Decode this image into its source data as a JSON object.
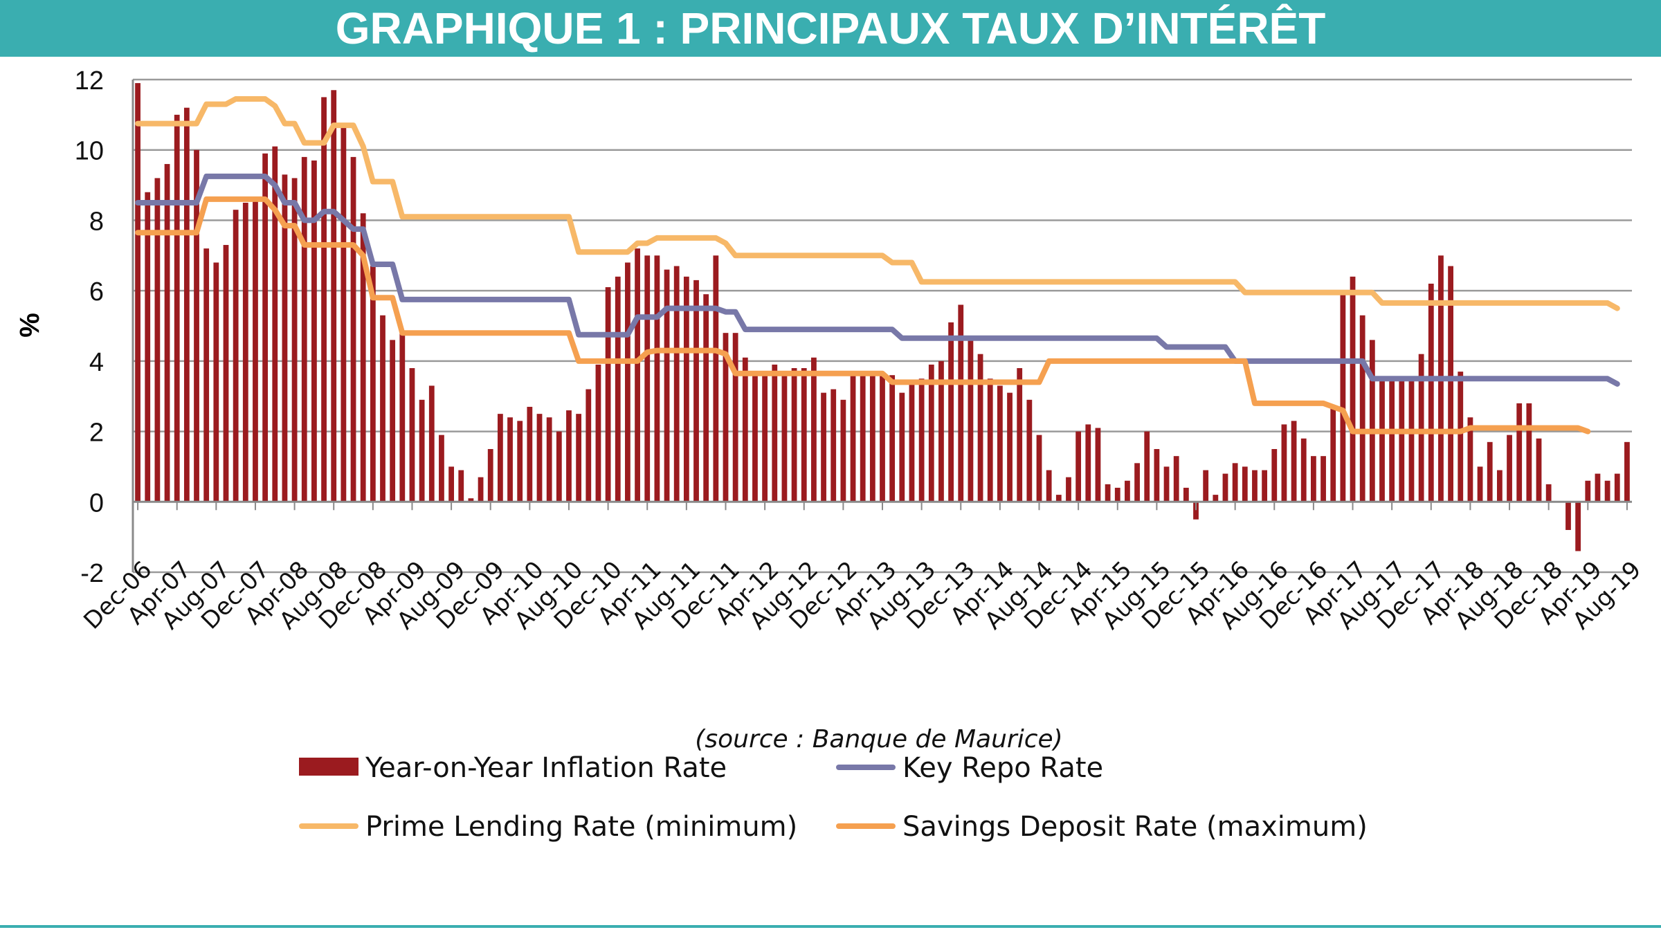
{
  "banner": {
    "title": "GRAPHIQUE 1 : PRINCIPAUX TAUX D’INTÉRÊT"
  },
  "chart_data": {
    "type": "bar",
    "title": "",
    "ylabel": "%",
    "xlabel": "",
    "ylim": [
      -2,
      12
    ],
    "yticks": [
      -2,
      0,
      2,
      4,
      6,
      8,
      10,
      12
    ],
    "grid": true,
    "legend_position": "bottom",
    "source": "(source : Banque de Maurice)",
    "x_tick_labels": [
      "Dec-06",
      "Apr-07",
      "Aug-07",
      "Dec-07",
      "Apr-08",
      "Aug-08",
      "Dec-08",
      "Apr-09",
      "Aug-09",
      "Dec-09",
      "Apr-10",
      "Aug-10",
      "Dec-10",
      "Apr-11",
      "Aug-11",
      "Dec-11",
      "Apr-12",
      "Aug-12",
      "Dec-12",
      "Apr-13",
      "Aug-13",
      "Dec-13",
      "Apr-14",
      "Aug-14",
      "Dec-14",
      "Apr-15",
      "Aug-15",
      "Dec-15",
      "Apr-16",
      "Aug-16",
      "Dec-16",
      "Apr-17",
      "Aug-17",
      "Dec-17",
      "Apr-18",
      "Aug-18",
      "Dec-18",
      "Apr-19",
      "Aug-19"
    ],
    "series": [
      {
        "name": "Year-on-Year Inflation Rate",
        "kind": "bar",
        "color": "#9b1b1f",
        "values": [
          11.9,
          8.8,
          9.2,
          9.6,
          11.0,
          11.2,
          10.0,
          7.2,
          6.8,
          7.3,
          8.3,
          8.5,
          8.6,
          9.9,
          10.1,
          9.3,
          9.2,
          9.8,
          9.7,
          11.5,
          11.7,
          10.7,
          9.8,
          8.2,
          6.7,
          5.3,
          4.6,
          4.8,
          3.8,
          2.9,
          3.3,
          1.9,
          1.0,
          0.9,
          0.1,
          0.7,
          1.5,
          2.5,
          2.4,
          2.3,
          2.7,
          2.5,
          2.4,
          2.0,
          2.6,
          2.5,
          3.2,
          3.9,
          6.1,
          6.4,
          6.8,
          7.2,
          7.0,
          7.0,
          6.6,
          6.7,
          6.4,
          6.3,
          5.9,
          7.0,
          4.8,
          4.8,
          4.1,
          3.7,
          3.7,
          3.9,
          3.7,
          3.8,
          3.8,
          4.1,
          3.1,
          3.2,
          2.9,
          3.7,
          3.6,
          3.7,
          3.6,
          3.6,
          3.1,
          3.4,
          3.5,
          3.9,
          4.0,
          5.1,
          5.6,
          4.6,
          4.2,
          3.5,
          3.3,
          3.1,
          3.8,
          2.9,
          1.9,
          0.9,
          0.2,
          0.7,
          2.0,
          2.2,
          2.1,
          0.5,
          0.4,
          0.6,
          1.1,
          2.0,
          1.5,
          1.0,
          1.3,
          0.4,
          -0.5,
          0.9,
          0.2,
          0.8,
          1.1,
          1.0,
          0.9,
          0.9,
          1.5,
          2.2,
          2.3,
          1.8,
          1.3,
          1.3,
          2.7,
          5.9,
          6.4,
          5.3,
          4.6,
          3.5,
          3.5,
          3.5,
          3.5,
          4.2,
          6.2,
          7.0,
          6.7,
          3.7,
          2.4,
          1.0,
          1.7,
          0.9,
          1.9,
          2.8,
          2.8,
          1.8,
          0.5,
          0.0,
          -0.8,
          -1.4,
          0.6,
          0.8,
          0.6,
          0.8,
          1.7
        ]
      },
      {
        "name": "Key Repo Rate",
        "kind": "line",
        "color": "#7878a8",
        "values": [
          8.5,
          8.5,
          8.5,
          8.5,
          8.5,
          8.5,
          8.5,
          9.25,
          9.25,
          9.25,
          9.25,
          9.25,
          9.25,
          9.25,
          9.0,
          8.5,
          8.5,
          8.0,
          8.0,
          8.25,
          8.25,
          8.0,
          7.75,
          7.75,
          6.75,
          6.75,
          6.75,
          5.75,
          5.75,
          5.75,
          5.75,
          5.75,
          5.75,
          5.75,
          5.75,
          5.75,
          5.75,
          5.75,
          5.75,
          5.75,
          5.75,
          5.75,
          5.75,
          5.75,
          5.75,
          4.75,
          4.75,
          4.75,
          4.75,
          4.75,
          4.75,
          5.25,
          5.25,
          5.25,
          5.5,
          5.5,
          5.5,
          5.5,
          5.5,
          5.5,
          5.4,
          5.4,
          4.9,
          4.9,
          4.9,
          4.9,
          4.9,
          4.9,
          4.9,
          4.9,
          4.9,
          4.9,
          4.9,
          4.9,
          4.9,
          4.9,
          4.9,
          4.9,
          4.65,
          4.65,
          4.65,
          4.65,
          4.65,
          4.65,
          4.65,
          4.65,
          4.65,
          4.65,
          4.65,
          4.65,
          4.65,
          4.65,
          4.65,
          4.65,
          4.65,
          4.65,
          4.65,
          4.65,
          4.65,
          4.65,
          4.65,
          4.65,
          4.65,
          4.65,
          4.65,
          4.4,
          4.4,
          4.4,
          4.4,
          4.4,
          4.4,
          4.4,
          4.0,
          4.0,
          4.0,
          4.0,
          4.0,
          4.0,
          4.0,
          4.0,
          4.0,
          4.0,
          4.0,
          4.0,
          4.0,
          4.0,
          3.5,
          3.5,
          3.5,
          3.5,
          3.5,
          3.5,
          3.5,
          3.5,
          3.5,
          3.5,
          3.5,
          3.5,
          3.5,
          3.5,
          3.5,
          3.5,
          3.5,
          3.5,
          3.5,
          3.5,
          3.5,
          3.5,
          3.5,
          3.5,
          3.5,
          3.35
        ]
      },
      {
        "name": "Prime Lending Rate (minimum)",
        "kind": "line",
        "color": "#f7b868",
        "values": [
          10.75,
          10.75,
          10.75,
          10.75,
          10.75,
          10.75,
          10.75,
          11.3,
          11.3,
          11.3,
          11.45,
          11.45,
          11.45,
          11.45,
          11.25,
          10.75,
          10.75,
          10.2,
          10.2,
          10.2,
          10.7,
          10.7,
          10.7,
          10.1,
          9.1,
          9.1,
          9.1,
          8.1,
          8.1,
          8.1,
          8.1,
          8.1,
          8.1,
          8.1,
          8.1,
          8.1,
          8.1,
          8.1,
          8.1,
          8.1,
          8.1,
          8.1,
          8.1,
          8.1,
          8.1,
          7.1,
          7.1,
          7.1,
          7.1,
          7.1,
          7.1,
          7.35,
          7.35,
          7.5,
          7.5,
          7.5,
          7.5,
          7.5,
          7.5,
          7.5,
          7.35,
          7.0,
          7.0,
          7.0,
          7.0,
          7.0,
          7.0,
          7.0,
          7.0,
          7.0,
          7.0,
          7.0,
          7.0,
          7.0,
          7.0,
          7.0,
          7.0,
          6.8,
          6.8,
          6.8,
          6.25,
          6.25,
          6.25,
          6.25,
          6.25,
          6.25,
          6.25,
          6.25,
          6.25,
          6.25,
          6.25,
          6.25,
          6.25,
          6.25,
          6.25,
          6.25,
          6.25,
          6.25,
          6.25,
          6.25,
          6.25,
          6.25,
          6.25,
          6.25,
          6.25,
          6.25,
          6.25,
          6.25,
          6.25,
          6.25,
          6.25,
          6.25,
          6.25,
          5.95,
          5.95,
          5.95,
          5.95,
          5.95,
          5.95,
          5.95,
          5.95,
          5.95,
          5.95,
          5.95,
          5.95,
          5.95,
          5.95,
          5.65,
          5.65,
          5.65,
          5.65,
          5.65,
          5.65,
          5.65,
          5.65,
          5.65,
          5.65,
          5.65,
          5.65,
          5.65,
          5.65,
          5.65,
          5.65,
          5.65,
          5.65,
          5.65,
          5.65,
          5.65,
          5.65,
          5.65,
          5.65,
          5.5
        ]
      },
      {
        "name": "Savings Deposit Rate (maximum)",
        "kind": "line",
        "color": "#f5a050",
        "values": [
          7.65,
          7.65,
          7.65,
          7.65,
          7.65,
          7.65,
          7.65,
          8.6,
          8.6,
          8.6,
          8.6,
          8.6,
          8.6,
          8.6,
          8.3,
          7.85,
          7.85,
          7.3,
          7.3,
          7.3,
          7.3,
          7.3,
          7.3,
          7.0,
          5.8,
          5.8,
          5.8,
          4.8,
          4.8,
          4.8,
          4.8,
          4.8,
          4.8,
          4.8,
          4.8,
          4.8,
          4.8,
          4.8,
          4.8,
          4.8,
          4.8,
          4.8,
          4.8,
          4.8,
          4.8,
          4.0,
          4.0,
          4.0,
          4.0,
          4.0,
          4.0,
          4.0,
          4.25,
          4.3,
          4.3,
          4.3,
          4.3,
          4.3,
          4.3,
          4.3,
          4.2,
          3.65,
          3.65,
          3.65,
          3.65,
          3.65,
          3.65,
          3.65,
          3.65,
          3.65,
          3.65,
          3.65,
          3.65,
          3.65,
          3.65,
          3.65,
          3.65,
          3.4,
          3.4,
          3.4,
          3.4,
          3.4,
          3.4,
          3.4,
          3.4,
          3.4,
          3.4,
          3.4,
          3.4,
          3.4,
          3.4,
          3.4,
          3.4,
          4.0,
          4.0,
          4.0,
          4.0,
          4.0,
          4.0,
          4.0,
          4.0,
          4.0,
          4.0,
          4.0,
          4.0,
          4.0,
          4.0,
          4.0,
          4.0,
          4.0,
          4.0,
          4.0,
          4.0,
          4.0,
          2.8,
          2.8,
          2.8,
          2.8,
          2.8,
          2.8,
          2.8,
          2.8,
          2.7,
          2.6,
          2.0,
          2.0,
          2.0,
          2.0,
          2.0,
          2.0,
          2.0,
          2.0,
          2.0,
          2.0,
          2.0,
          2.0,
          2.1,
          2.1,
          2.1,
          2.1,
          2.1,
          2.1,
          2.1,
          2.1,
          2.1,
          2.1,
          2.1,
          2.1,
          2.0
        ]
      }
    ]
  }
}
